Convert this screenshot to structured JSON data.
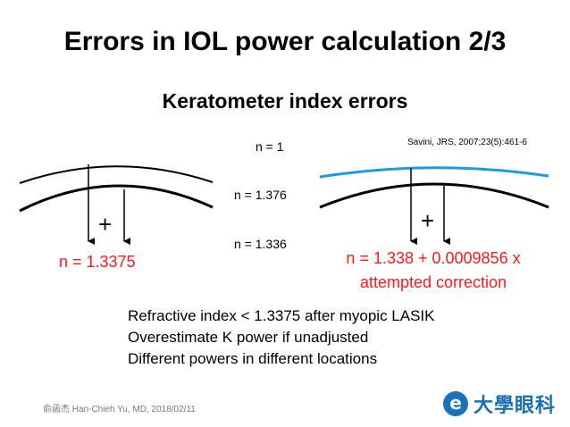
{
  "title": "Errors in IOL power calculation 2/3",
  "subtitle": "Keratometer index errors",
  "labels": {
    "n_air": "n = 1",
    "n_cornea": "n = 1.376",
    "n_aqueous": "n = 1.336"
  },
  "citation": "Savini, JRS, 2007;23(5):461-6",
  "left_panel": {
    "plus": "+",
    "index_text": "n = 1.3375"
  },
  "right_panel": {
    "plus": "+",
    "formula_line1": "n = 1.338 + 0.0009856 x",
    "formula_line2": "attempted correction"
  },
  "bullets": [
    "Refractive index < 1.3375 after myopic LASIK",
    "Overestimate K power if unadjusted",
    "Different powers in different locations"
  ],
  "footer": "俞函杰 Han-Chieh Yu, MD, 2018/02/11",
  "logo": {
    "mark": "e",
    "text": "大學眼科",
    "color": "#1a73b8"
  },
  "colors": {
    "accent_red": "#ff1a1a",
    "post_lasik_surface": "#1e9be0"
  }
}
